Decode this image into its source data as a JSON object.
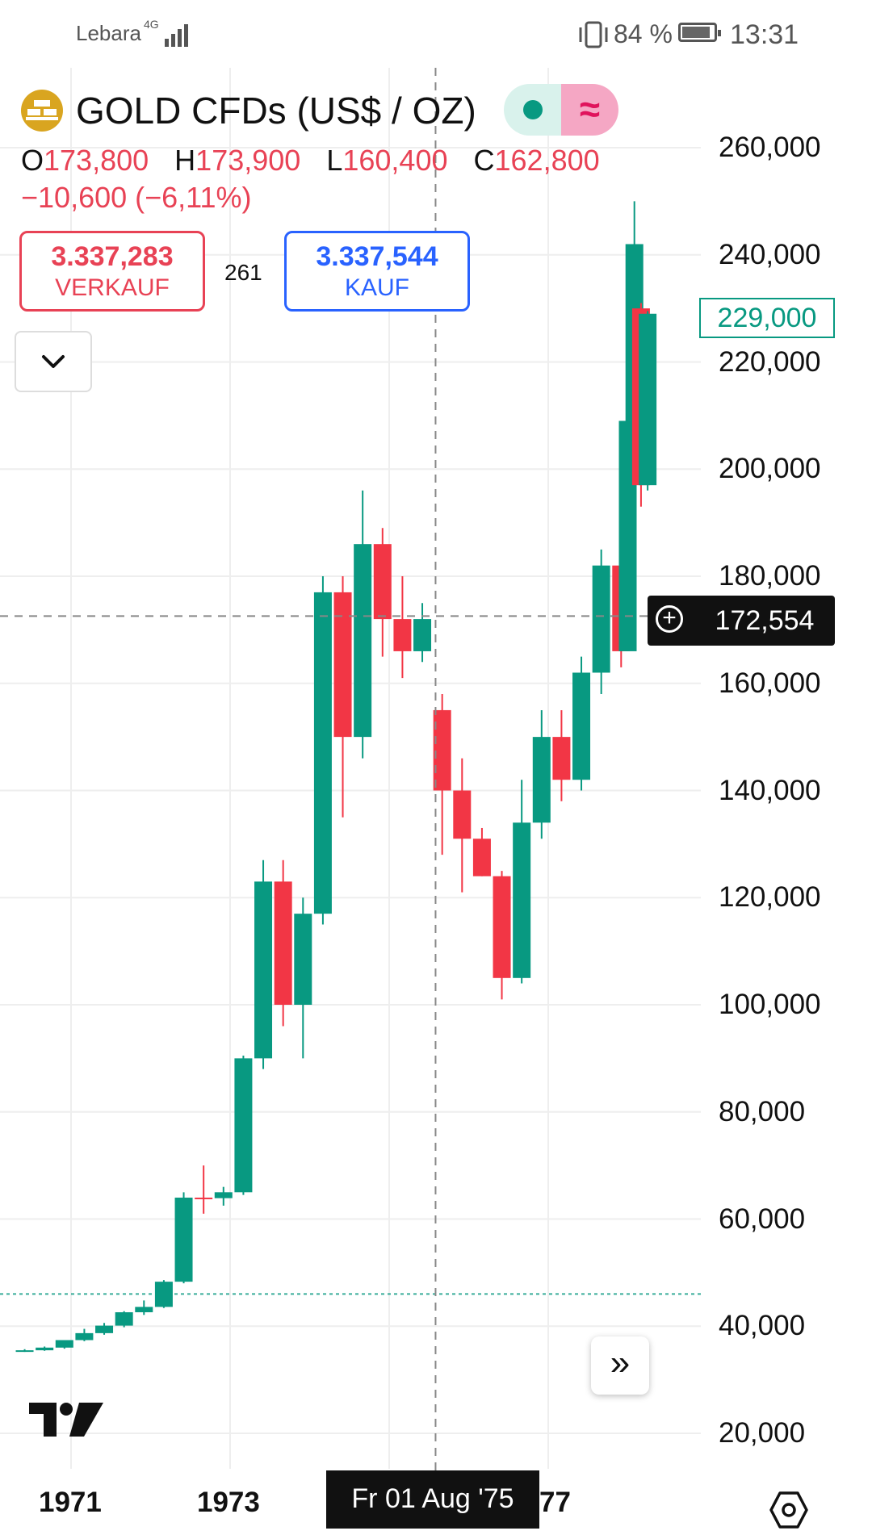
{
  "status_bar": {
    "carrier": "Lebara",
    "network": "4G",
    "battery_percent": "84 %",
    "time": "13:31"
  },
  "header": {
    "title": "GOLD CFDs (US$ / OZ)",
    "symbol_icon": "gold-bars-icon",
    "toggle_icons": [
      "market-open-dot-icon",
      "wave-indicator-icon"
    ],
    "wave_glyph": "≈"
  },
  "ohlc": {
    "o_label": "O",
    "o_value": "173,800",
    "h_label": "H",
    "h_value": "173,900",
    "l_label": "L",
    "l_value": "160,400",
    "c_label": "C",
    "c_value": "162,800",
    "change": "−10,600 (−6,11%)"
  },
  "trade": {
    "sell_price": "3.337,283",
    "sell_label": "VERKAUF",
    "spread": "261",
    "buy_price": "3.337,544",
    "buy_label": "KAUF"
  },
  "price_axis": {
    "ticks": [
      "260,000",
      "240,000",
      "220,000",
      "200,000",
      "180,000",
      "160,000",
      "140,000",
      "120,000",
      "100,000",
      "80,000",
      "60,000",
      "40,000",
      "20,000"
    ],
    "last_price": "229,000",
    "crosshair_price": "172,554"
  },
  "time_axis": {
    "ticks": [
      "1971",
      "1973",
      "77"
    ],
    "crosshair_date": "Fr 01 Aug '75"
  },
  "icons": {
    "collapse": "chevron-down-icon",
    "scroll": "double-chevron-right-icon",
    "scroll_glyph": "»",
    "settings": "settings-hexagon-icon",
    "logo": "tradingview-logo-icon",
    "add": "plus-circle-icon",
    "add_glyph": "+"
  },
  "colors": {
    "up": "#089981",
    "down": "#f23645",
    "sell": "#e84255",
    "buy": "#2962ff"
  },
  "chart_data": {
    "type": "candlestick",
    "y_range": [
      20,
      260
    ],
    "x_range": [
      "1970-03",
      "1978-03"
    ],
    "price_line_dotted": 46,
    "crosshair": {
      "date": "1975-08-01",
      "price": 172.554
    },
    "candles": [
      {
        "t": "1970-06",
        "o": 35.4,
        "h": 35.7,
        "l": 35.2,
        "c": 35.5
      },
      {
        "t": "1970-09",
        "o": 35.5,
        "h": 36.2,
        "l": 35.4,
        "c": 36.0
      },
      {
        "t": "1970-12",
        "o": 36.0,
        "h": 37.0,
        "l": 35.8,
        "c": 37.4
      },
      {
        "t": "1971-03",
        "o": 37.4,
        "h": 39.5,
        "l": 37.2,
        "c": 38.7
      },
      {
        "t": "1971-06",
        "o": 38.7,
        "h": 40.6,
        "l": 38.4,
        "c": 40.1
      },
      {
        "t": "1971-09",
        "o": 40.1,
        "h": 42.8,
        "l": 39.8,
        "c": 42.6
      },
      {
        "t": "1971-12",
        "o": 42.6,
        "h": 44.8,
        "l": 42.1,
        "c": 43.6
      },
      {
        "t": "1972-03",
        "o": 43.6,
        "h": 48.6,
        "l": 43.4,
        "c": 48.3
      },
      {
        "t": "1972-06",
        "o": 48.3,
        "h": 65.0,
        "l": 48.0,
        "c": 64.0
      },
      {
        "t": "1972-09",
        "o": 64.0,
        "h": 70.0,
        "l": 61.0,
        "c": 63.9
      },
      {
        "t": "1972-12",
        "o": 63.9,
        "h": 66.0,
        "l": 62.5,
        "c": 65.0
      },
      {
        "t": "1973-03",
        "o": 65.0,
        "h": 90.5,
        "l": 64.5,
        "c": 90.0
      },
      {
        "t": "1973-06",
        "o": 90.0,
        "h": 127.0,
        "l": 88.0,
        "c": 123.0
      },
      {
        "t": "1973-09",
        "o": 123.0,
        "h": 127.0,
        "l": 96.0,
        "c": 100.0
      },
      {
        "t": "1973-12",
        "o": 100.0,
        "h": 120.0,
        "l": 90.0,
        "c": 117.0
      },
      {
        "t": "1974-03",
        "o": 117.0,
        "h": 180.0,
        "l": 115.0,
        "c": 177.0
      },
      {
        "t": "1974-06",
        "o": 177.0,
        "h": 180.0,
        "l": 135.0,
        "c": 150.0
      },
      {
        "t": "1974-09",
        "o": 150.0,
        "h": 196.0,
        "l": 146.0,
        "c": 186.0
      },
      {
        "t": "1974-12",
        "o": 186.0,
        "h": 189.0,
        "l": 165.0,
        "c": 172.0
      },
      {
        "t": "1975-03",
        "o": 172.0,
        "h": 180.0,
        "l": 161.0,
        "c": 166.0
      },
      {
        "t": "1975-06",
        "o": 166.0,
        "h": 175.0,
        "l": 164.0,
        "c": 172.0
      },
      {
        "t": "1975-09",
        "o": 155.0,
        "h": 158.0,
        "l": 128.0,
        "c": 140.0
      },
      {
        "t": "1975-12",
        "o": 140.0,
        "h": 146.0,
        "l": 121.0,
        "c": 131.0
      },
      {
        "t": "1976-03",
        "o": 131.0,
        "h": 133.0,
        "l": 124.0,
        "c": 124.0
      },
      {
        "t": "1976-06",
        "o": 124.0,
        "h": 125.0,
        "l": 101.0,
        "c": 105.0
      },
      {
        "t": "1976-09",
        "o": 105.0,
        "h": 142.0,
        "l": 104.0,
        "c": 134.0
      },
      {
        "t": "1976-12",
        "o": 134.0,
        "h": 155.0,
        "l": 131.0,
        "c": 150.0
      },
      {
        "t": "1977-03",
        "o": 150.0,
        "h": 155.0,
        "l": 138.0,
        "c": 142.0
      },
      {
        "t": "1977-06",
        "o": 142.0,
        "h": 165.0,
        "l": 140.0,
        "c": 162.0
      },
      {
        "t": "1977-09",
        "o": 162.0,
        "h": 185.0,
        "l": 158.0,
        "c": 182.0
      },
      {
        "t": "1977-12",
        "o": 182.0,
        "h": 193.0,
        "l": 163.0,
        "c": 166.0
      },
      {
        "t": "1978-01",
        "o": 166.0,
        "h": 209.0,
        "l": 166.0,
        "c": 209.0
      },
      {
        "t": "1978-02",
        "o": 209.0,
        "h": 250.0,
        "l": 205.0,
        "c": 242.0
      },
      {
        "t": "1978-03",
        "o": 230.0,
        "h": 231.0,
        "l": 193.0,
        "c": 197.0
      },
      {
        "t": "1978-04",
        "o": 197.0,
        "h": 229.5,
        "l": 196.0,
        "c": 229.0
      }
    ]
  }
}
